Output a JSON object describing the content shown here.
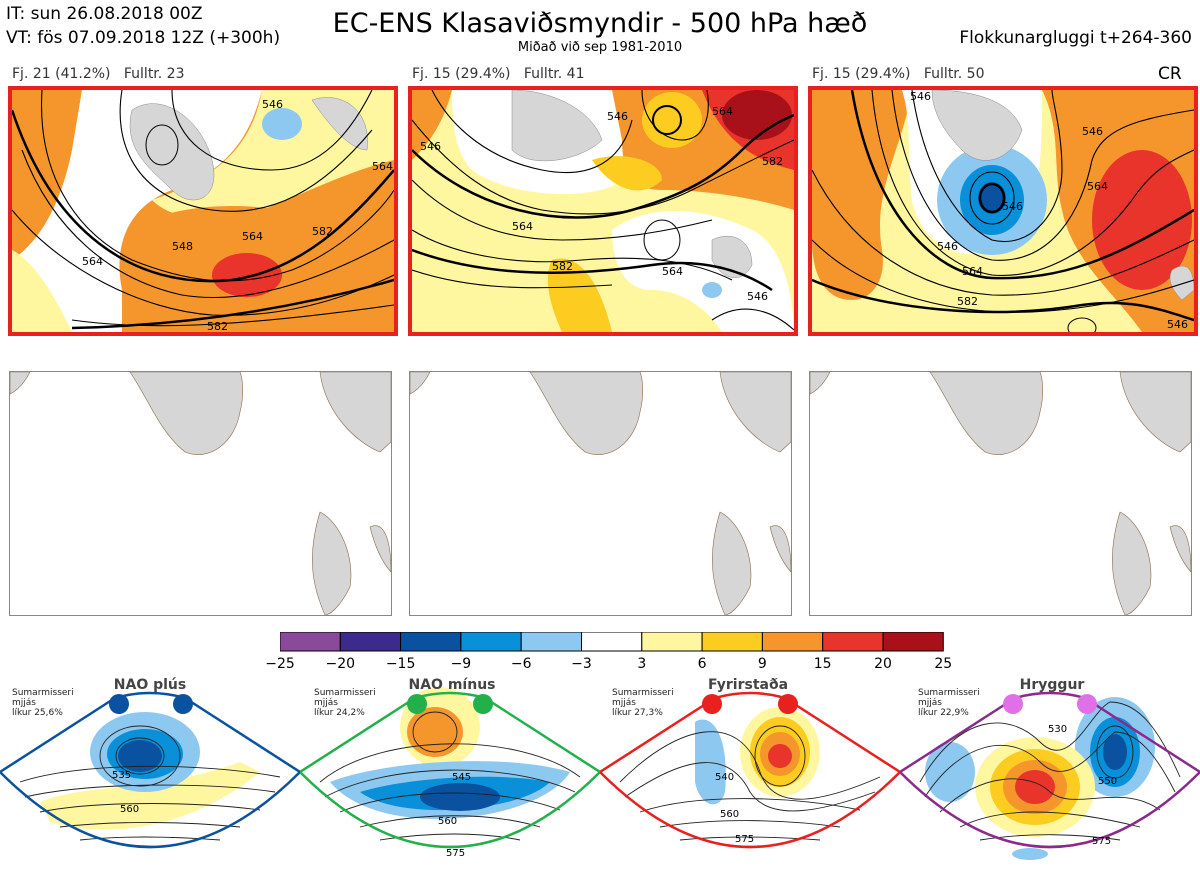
{
  "header": {
    "it": "IT: sun 26.08.2018 00Z",
    "vt": "VT: fös 07.09.2018 12Z  (+300h)",
    "title": "EC-ENS Klasaviðsmyndir - 500 hPa hæð",
    "subtitle": "Miðað við sep 1981-2010",
    "right": "Flokkunargluggi t+264-360"
  },
  "panels": [
    {
      "fj": "Fj. 21 (41.2%)",
      "fulltr": "Fulltr. 23",
      "contours": [
        "546",
        "564",
        "548",
        "582",
        "564",
        "564",
        "582"
      ]
    },
    {
      "fj": "Fj. 15 (29.4%)",
      "fulltr": "Fulltr. 41",
      "contours": [
        "546",
        "546",
        "564",
        "564",
        "582",
        "582",
        "564",
        "546"
      ]
    },
    {
      "fj": "Fj. 15 (29.4%)",
      "fulltr": "Fulltr. 50",
      "contours": [
        "546",
        "546",
        "564",
        "582",
        "546",
        "564",
        "546",
        "546"
      ]
    }
  ],
  "cr": "CR",
  "colorbar": {
    "labels": [
      "−25",
      "−20",
      "−15",
      "−9",
      "−6",
      "−3",
      "3",
      "6",
      "9",
      "15",
      "20",
      "25"
    ],
    "colors": [
      "#8a4a9a",
      "#3c2a8c",
      "#0a52a0",
      "#0a90d8",
      "#8cc8f0",
      "#ffffff",
      "#fff7a0",
      "#fccc20",
      "#f5962d",
      "#e8342a",
      "#a8101a"
    ]
  },
  "regimes": [
    {
      "name": "NAO plús",
      "line1": "Sumarmisseri",
      "line2": "mjjás",
      "line3": "líkur 25,6%",
      "color": "#0a52a0",
      "labels": [
        "535",
        "560"
      ]
    },
    {
      "name": "NAO mínus",
      "line1": "Sumarmisseri",
      "line2": "mjjás",
      "line3": "líkur 24,2%",
      "color": "#22b04a",
      "labels": [
        "545",
        "560",
        "575"
      ]
    },
    {
      "name": "Fyrirstaða",
      "line1": "Sumarmisseri",
      "line2": "mjjás",
      "line3": "líkur 27,3%",
      "color": "#e8201e",
      "labels": [
        "540",
        "560",
        "575"
      ]
    },
    {
      "name": "Hryggur",
      "line1": "Sumarmisseri",
      "line2": "mjjás",
      "line3": "líkur 22,9%",
      "color": "#e070e8",
      "labels": [
        "530",
        "550",
        "575"
      ]
    }
  ]
}
